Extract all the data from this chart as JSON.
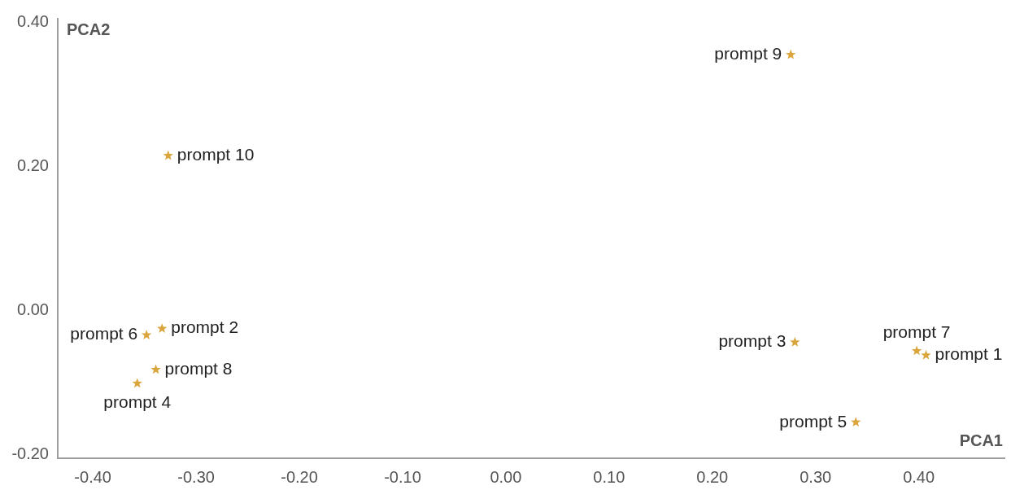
{
  "chart_data": {
    "type": "scatter",
    "xlabel": "PCA1",
    "ylabel": "PCA2",
    "x": [
      0.407,
      -0.333,
      0.28,
      -0.357,
      0.339,
      -0.348,
      0.398,
      -0.339,
      0.276,
      -0.327
    ],
    "values": [
      -0.062,
      -0.025,
      -0.044,
      -0.101,
      -0.155,
      -0.034,
      -0.056,
      -0.082,
      0.355,
      0.215
    ],
    "color": "#d9a53c",
    "marker": "star",
    "xlim": [
      -0.434,
      0.483
    ],
    "ylim": [
      -0.205,
      0.405
    ],
    "xticks": [
      {
        "value": -0.4,
        "label": "-0.40"
      },
      {
        "value": -0.3,
        "label": "-0.30"
      },
      {
        "value": -0.2,
        "label": "-0.20"
      },
      {
        "value": -0.1,
        "label": "-0.10"
      },
      {
        "value": 0,
        "label": "0.00"
      },
      {
        "value": 0.1,
        "label": "0.10"
      },
      {
        "value": 0.2,
        "label": "0.20"
      },
      {
        "value": 0.3,
        "label": "0.30"
      },
      {
        "value": 0.4,
        "label": "0.40"
      }
    ],
    "yticks": [
      {
        "value": -0.2,
        "label": "-0.20"
      },
      {
        "value": 0,
        "label": "0.00"
      },
      {
        "value": 0.2,
        "label": "0.20"
      },
      {
        "value": 0.4,
        "label": "0.40"
      }
    ],
    "grid": false,
    "legend": false,
    "annotations": [
      {
        "text": "prompt 1",
        "x": 0.407,
        "y": -0.062
      },
      {
        "text": "prompt 2",
        "x": -0.333,
        "y": -0.025
      },
      {
        "text": "prompt 3",
        "x": 0.28,
        "y": -0.044
      },
      {
        "text": "prompt 4",
        "x": -0.357,
        "y": -0.101
      },
      {
        "text": "prompt 5",
        "x": 0.339,
        "y": -0.155
      },
      {
        "text": "prompt 6",
        "x": -0.348,
        "y": -0.034
      },
      {
        "text": "prompt 7",
        "x": 0.398,
        "y": -0.056
      },
      {
        "text": "prompt 8",
        "x": -0.339,
        "y": -0.082
      },
      {
        "text": "prompt 9",
        "x": 0.276,
        "y": 0.355
      },
      {
        "text": "prompt 10",
        "x": -0.327,
        "y": 0.215
      }
    ]
  }
}
